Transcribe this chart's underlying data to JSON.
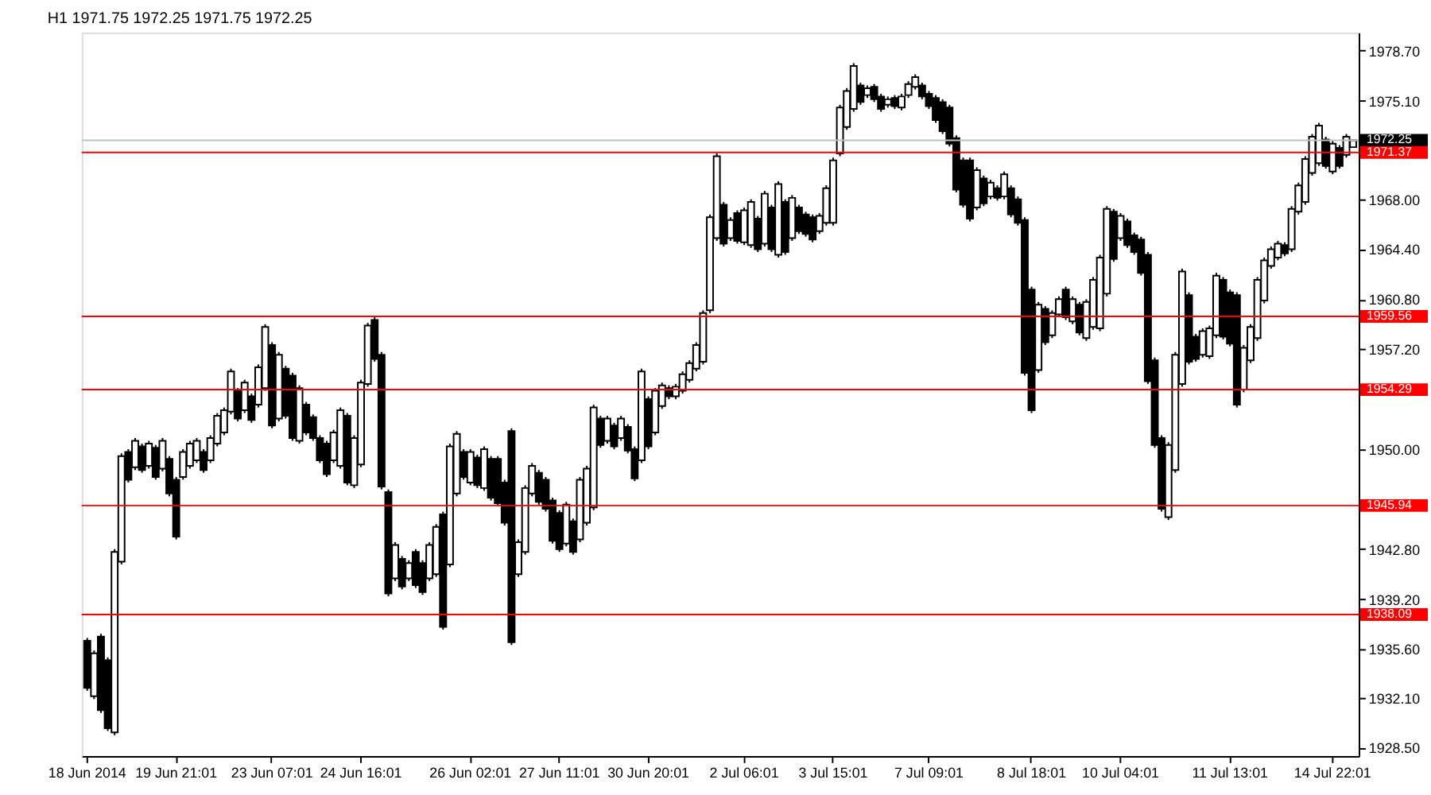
{
  "chart_data": {
    "type": "candlestick",
    "title": "H1  1971.75 1972.25 1971.75 1972.25",
    "color": "#000000",
    "categories": [
      "18 Jun 2014",
      null,
      null,
      null,
      null,
      null,
      null,
      null,
      null,
      null,
      null,
      null,
      null,
      "19 Jun 21:01",
      null,
      null,
      null,
      null,
      null,
      null,
      null,
      null,
      null,
      null,
      null,
      null,
      null,
      "23 Jun 07:01",
      null,
      null,
      null,
      null,
      null,
      null,
      null,
      null,
      null,
      null,
      null,
      null,
      "24 Jun 16:01",
      null,
      null,
      null,
      null,
      null,
      null,
      null,
      null,
      null,
      null,
      null,
      null,
      null,
      null,
      null,
      "26 Jun 02:01",
      null,
      null,
      null,
      null,
      null,
      null,
      null,
      null,
      null,
      null,
      null,
      null,
      "27 Jun 11:01",
      null,
      null,
      null,
      null,
      null,
      null,
      null,
      null,
      null,
      null,
      null,
      null,
      "30 Jun 20:01",
      null,
      null,
      null,
      null,
      null,
      null,
      null,
      null,
      null,
      null,
      null,
      null,
      null,
      "2 Jul 06:01",
      null,
      null,
      null,
      null,
      null,
      null,
      null,
      null,
      null,
      null,
      null,
      null,
      "3 Jul 15:01",
      null,
      null,
      null,
      null,
      null,
      null,
      null,
      null,
      null,
      null,
      null,
      null,
      null,
      "7 Jul 09:01",
      null,
      null,
      null,
      null,
      null,
      null,
      null,
      null,
      null,
      null,
      null,
      null,
      null,
      null,
      "8 Jul 18:01",
      null,
      null,
      null,
      null,
      null,
      null,
      null,
      null,
      null,
      null,
      null,
      null,
      "10 Jul 04:01",
      null,
      null,
      null,
      null,
      null,
      null,
      null,
      null,
      null,
      null,
      null,
      null,
      null,
      null,
      null,
      "11 Jul 13:01",
      null,
      null,
      null,
      null,
      null,
      null,
      null,
      null,
      null,
      null,
      null,
      null,
      null,
      null,
      "14 Jul 22:01",
      null,
      null,
      null
    ],
    "ohlc": [
      [
        1936.2,
        1936.4,
        1932.6,
        1932.8
      ],
      [
        1932.2,
        1935.5,
        1932.0,
        1935.3
      ],
      [
        1936.5,
        1936.7,
        1931.0,
        1931.2
      ],
      [
        1934.8,
        1935.0,
        1929.7,
        1929.9
      ],
      [
        1929.6,
        1942.8,
        1929.4,
        1942.6
      ],
      [
        1941.9,
        1949.7,
        1941.7,
        1949.5
      ],
      [
        1949.8,
        1950.0,
        1947.6,
        1947.8
      ],
      [
        1948.7,
        1950.8,
        1948.5,
        1950.6
      ],
      [
        1950.2,
        1950.4,
        1948.3,
        1948.5
      ],
      [
        1948.8,
        1950.6,
        1948.6,
        1950.4
      ],
      [
        1950.1,
        1950.3,
        1947.8,
        1948.0
      ],
      [
        1948.6,
        1950.8,
        1948.4,
        1950.6
      ],
      [
        1949.3,
        1949.5,
        1946.6,
        1946.8
      ],
      [
        1947.8,
        1948.0,
        1943.5,
        1943.7
      ],
      [
        1948.0,
        1950.0,
        1947.8,
        1949.8
      ],
      [
        1948.8,
        1950.6,
        1948.6,
        1950.4
      ],
      [
        1949.2,
        1950.8,
        1949.0,
        1950.6
      ],
      [
        1949.8,
        1950.0,
        1948.3,
        1948.5
      ],
      [
        1949.2,
        1951.0,
        1949.0,
        1950.8
      ],
      [
        1950.4,
        1952.6,
        1950.2,
        1952.4
      ],
      [
        1951.2,
        1953.0,
        1951.0,
        1952.8
      ],
      [
        1952.7,
        1955.8,
        1952.5,
        1955.6
      ],
      [
        1954.2,
        1954.4,
        1952.0,
        1952.2
      ],
      [
        1952.8,
        1955.0,
        1952.6,
        1954.8
      ],
      [
        1953.8,
        1954.0,
        1951.9,
        1952.1
      ],
      [
        1953.2,
        1956.1,
        1953.0,
        1955.9
      ],
      [
        1954.4,
        1959.0,
        1954.2,
        1958.8
      ],
      [
        1957.5,
        1957.7,
        1951.5,
        1951.7
      ],
      [
        1952.2,
        1957.0,
        1952.0,
        1956.8
      ],
      [
        1955.8,
        1956.0,
        1952.2,
        1952.4
      ],
      [
        1955.3,
        1955.5,
        1950.6,
        1950.8
      ],
      [
        1950.6,
        1954.6,
        1950.4,
        1954.4
      ],
      [
        1953.2,
        1953.4,
        1951.0,
        1951.2
      ],
      [
        1952.3,
        1952.5,
        1950.6,
        1950.8
      ],
      [
        1950.8,
        1951.0,
        1949.0,
        1949.2
      ],
      [
        1950.4,
        1950.6,
        1948.0,
        1948.2
      ],
      [
        1949.2,
        1951.4,
        1949.0,
        1951.2
      ],
      [
        1948.8,
        1953.0,
        1948.6,
        1952.8
      ],
      [
        1952.4,
        1952.6,
        1947.4,
        1947.6
      ],
      [
        1947.4,
        1951.0,
        1947.2,
        1950.8
      ],
      [
        1948.9,
        1955.0,
        1948.7,
        1954.8
      ],
      [
        1954.7,
        1959.1,
        1954.5,
        1958.9
      ],
      [
        1959.3,
        1959.5,
        1956.3,
        1956.5
      ],
      [
        1956.8,
        1957.0,
        1947.1,
        1947.3
      ],
      [
        1946.9,
        1947.1,
        1939.4,
        1939.6
      ],
      [
        1940.7,
        1943.3,
        1940.5,
        1943.1
      ],
      [
        1942.1,
        1942.3,
        1939.9,
        1940.1
      ],
      [
        1940.7,
        1942.0,
        1940.5,
        1941.8
      ],
      [
        1942.6,
        1942.8,
        1940.0,
        1940.2
      ],
      [
        1941.8,
        1942.0,
        1939.5,
        1939.7
      ],
      [
        1940.7,
        1943.3,
        1940.5,
        1943.1
      ],
      [
        1941.0,
        1944.6,
        1940.8,
        1944.4
      ],
      [
        1945.3,
        1945.5,
        1937.0,
        1937.2
      ],
      [
        1941.7,
        1950.4,
        1941.5,
        1950.2
      ],
      [
        1946.8,
        1951.3,
        1946.6,
        1951.1
      ],
      [
        1949.8,
        1950.0,
        1947.8,
        1948.0
      ],
      [
        1947.6,
        1950.0,
        1947.4,
        1949.8
      ],
      [
        1949.4,
        1949.6,
        1947.2,
        1947.4
      ],
      [
        1947.2,
        1950.2,
        1947.0,
        1950.0
      ],
      [
        1949.3,
        1949.5,
        1946.3,
        1946.5
      ],
      [
        1949.3,
        1949.5,
        1945.9,
        1946.1
      ],
      [
        1947.6,
        1947.8,
        1944.5,
        1944.7
      ],
      [
        1951.3,
        1951.5,
        1935.9,
        1936.1
      ],
      [
        1941.0,
        1943.5,
        1940.8,
        1943.3
      ],
      [
        1942.6,
        1947.4,
        1942.4,
        1947.2
      ],
      [
        1946.8,
        1949.0,
        1946.6,
        1948.8
      ],
      [
        1948.3,
        1948.5,
        1946.0,
        1946.2
      ],
      [
        1947.8,
        1948.0,
        1945.5,
        1945.7
      ],
      [
        1946.3,
        1946.5,
        1943.2,
        1943.4
      ],
      [
        1945.4,
        1945.6,
        1942.6,
        1942.8
      ],
      [
        1943.2,
        1946.2,
        1943.0,
        1946.0
      ],
      [
        1944.8,
        1945.0,
        1942.4,
        1942.6
      ],
      [
        1943.5,
        1948.0,
        1943.3,
        1947.8
      ],
      [
        1944.7,
        1948.8,
        1944.5,
        1948.6
      ],
      [
        1945.8,
        1953.2,
        1945.6,
        1953.0
      ],
      [
        1952.2,
        1952.4,
        1950.1,
        1950.3
      ],
      [
        1950.6,
        1952.4,
        1950.4,
        1952.2
      ],
      [
        1951.7,
        1951.9,
        1950.0,
        1950.2
      ],
      [
        1950.8,
        1952.4,
        1950.6,
        1952.2
      ],
      [
        1951.6,
        1951.8,
        1949.7,
        1949.9
      ],
      [
        1950.0,
        1950.2,
        1947.7,
        1947.9
      ],
      [
        1949.2,
        1955.8,
        1949.0,
        1955.6
      ],
      [
        1953.6,
        1953.8,
        1950.0,
        1950.2
      ],
      [
        1951.2,
        1954.4,
        1951.0,
        1954.2
      ],
      [
        1953.1,
        1954.8,
        1952.9,
        1954.6
      ],
      [
        1954.4,
        1954.6,
        1953.6,
        1953.8
      ],
      [
        1953.8,
        1954.7,
        1953.6,
        1954.5
      ],
      [
        1954.2,
        1955.6,
        1954.0,
        1955.4
      ],
      [
        1955.0,
        1956.4,
        1954.8,
        1956.2
      ],
      [
        1955.8,
        1957.7,
        1955.6,
        1957.5
      ],
      [
        1956.3,
        1960.0,
        1956.1,
        1959.8
      ],
      [
        1960.0,
        1966.9,
        1959.8,
        1966.7
      ],
      [
        1965.2,
        1971.3,
        1965.0,
        1971.1
      ],
      [
        1967.6,
        1967.8,
        1964.6,
        1964.8
      ],
      [
        1965.2,
        1966.7,
        1965.0,
        1966.5
      ],
      [
        1967.0,
        1967.2,
        1964.8,
        1965.0
      ],
      [
        1964.9,
        1967.4,
        1964.7,
        1967.2
      ],
      [
        1964.7,
        1968.0,
        1964.5,
        1967.8
      ],
      [
        1966.6,
        1966.8,
        1964.2,
        1964.4
      ],
      [
        1964.8,
        1968.6,
        1964.6,
        1968.4
      ],
      [
        1967.4,
        1967.6,
        1964.2,
        1964.4
      ],
      [
        1964.0,
        1969.3,
        1963.8,
        1969.1
      ],
      [
        1967.8,
        1968.0,
        1964.0,
        1964.2
      ],
      [
        1965.2,
        1968.3,
        1965.0,
        1968.1
      ],
      [
        1967.4,
        1967.6,
        1965.5,
        1965.7
      ],
      [
        1966.9,
        1967.1,
        1965.3,
        1965.5
      ],
      [
        1966.7,
        1966.9,
        1964.9,
        1965.1
      ],
      [
        1965.7,
        1967.0,
        1965.5,
        1966.8
      ],
      [
        1966.3,
        1969.0,
        1966.1,
        1968.8
      ],
      [
        1966.3,
        1971.0,
        1966.1,
        1970.8
      ],
      [
        1971.3,
        1974.8,
        1971.1,
        1974.6
      ],
      [
        1973.2,
        1976.0,
        1973.0,
        1975.8
      ],
      [
        1974.5,
        1977.8,
        1974.3,
        1977.6
      ],
      [
        1976.2,
        1976.4,
        1974.8,
        1975.0
      ],
      [
        1975.5,
        1976.2,
        1975.3,
        1976.0
      ],
      [
        1976.1,
        1976.3,
        1975.0,
        1975.2
      ],
      [
        1975.4,
        1975.6,
        1974.3,
        1974.5
      ],
      [
        1974.8,
        1975.4,
        1974.6,
        1975.2
      ],
      [
        1975.3,
        1975.5,
        1974.5,
        1974.7
      ],
      [
        1974.6,
        1975.6,
        1974.4,
        1975.4
      ],
      [
        1975.5,
        1976.5,
        1975.3,
        1976.3
      ],
      [
        1976.1,
        1977.0,
        1975.9,
        1976.8
      ],
      [
        1976.2,
        1976.4,
        1975.2,
        1975.4
      ],
      [
        1975.6,
        1975.8,
        1974.5,
        1974.7
      ],
      [
        1975.3,
        1975.5,
        1973.5,
        1973.7
      ],
      [
        1975.0,
        1975.2,
        1972.7,
        1972.9
      ],
      [
        1974.6,
        1974.8,
        1971.8,
        1972.0
      ],
      [
        1972.4,
        1972.6,
        1968.5,
        1968.7
      ],
      [
        1970.8,
        1971.0,
        1967.4,
        1967.6
      ],
      [
        1970.8,
        1971.0,
        1966.4,
        1966.6
      ],
      [
        1967.4,
        1970.3,
        1967.2,
        1970.1
      ],
      [
        1969.5,
        1969.7,
        1967.5,
        1967.7
      ],
      [
        1968.2,
        1969.4,
        1968.0,
        1969.2
      ],
      [
        1968.8,
        1969.0,
        1967.9,
        1968.1
      ],
      [
        1968.2,
        1970.0,
        1968.0,
        1969.8
      ],
      [
        1968.8,
        1969.0,
        1966.7,
        1966.9
      ],
      [
        1968.0,
        1968.2,
        1966.1,
        1966.3
      ],
      [
        1966.5,
        1966.7,
        1955.3,
        1955.5
      ],
      [
        1961.5,
        1961.7,
        1952.6,
        1952.8
      ],
      [
        1955.7,
        1960.6,
        1955.5,
        1960.4
      ],
      [
        1960.1,
        1960.3,
        1957.5,
        1957.7
      ],
      [
        1958.2,
        1960.0,
        1958.0,
        1959.8
      ],
      [
        1959.7,
        1961.0,
        1959.5,
        1960.8
      ],
      [
        1961.5,
        1961.7,
        1959.3,
        1959.5
      ],
      [
        1959.2,
        1961.0,
        1959.0,
        1960.8
      ],
      [
        1960.4,
        1960.6,
        1958.2,
        1958.4
      ],
      [
        1958.0,
        1960.8,
        1957.8,
        1960.6
      ],
      [
        1958.8,
        1962.4,
        1958.6,
        1962.2
      ],
      [
        1958.7,
        1964.0,
        1958.5,
        1963.8
      ],
      [
        1961.2,
        1967.5,
        1961.0,
        1967.3
      ],
      [
        1967.1,
        1967.3,
        1963.5,
        1963.7
      ],
      [
        1965.2,
        1967.0,
        1965.0,
        1966.8
      ],
      [
        1966.4,
        1966.6,
        1964.5,
        1964.7
      ],
      [
        1965.4,
        1965.6,
        1964.0,
        1964.2
      ],
      [
        1965.1,
        1965.3,
        1962.5,
        1962.7
      ],
      [
        1964.0,
        1964.2,
        1954.7,
        1954.9
      ],
      [
        1956.4,
        1956.6,
        1950.1,
        1950.3
      ],
      [
        1950.8,
        1951.0,
        1945.5,
        1945.7
      ],
      [
        1945.1,
        1950.5,
        1944.9,
        1950.3
      ],
      [
        1948.5,
        1957.0,
        1948.3,
        1956.8
      ],
      [
        1954.7,
        1963.0,
        1954.5,
        1962.8
      ],
      [
        1961.1,
        1961.3,
        1956.1,
        1956.3
      ],
      [
        1958.1,
        1958.3,
        1956.3,
        1956.5
      ],
      [
        1956.8,
        1958.7,
        1956.6,
        1958.5
      ],
      [
        1956.7,
        1958.9,
        1956.5,
        1958.7
      ],
      [
        1958.2,
        1962.7,
        1958.0,
        1962.5
      ],
      [
        1962.2,
        1962.4,
        1957.9,
        1958.1
      ],
      [
        1961.3,
        1961.5,
        1957.4,
        1957.6
      ],
      [
        1961.1,
        1961.3,
        1953.0,
        1953.2
      ],
      [
        1954.3,
        1957.5,
        1954.1,
        1957.3
      ],
      [
        1956.4,
        1959.0,
        1956.2,
        1958.8
      ],
      [
        1958.0,
        1962.4,
        1957.8,
        1962.2
      ],
      [
        1960.7,
        1963.8,
        1960.5,
        1963.6
      ],
      [
        1963.2,
        1964.6,
        1963.0,
        1964.4
      ],
      [
        1963.8,
        1965.0,
        1963.6,
        1964.8
      ],
      [
        1964.7,
        1964.9,
        1963.9,
        1964.1
      ],
      [
        1964.4,
        1967.5,
        1964.2,
        1967.3
      ],
      [
        1967.1,
        1969.2,
        1966.9,
        1969.0
      ],
      [
        1967.8,
        1971.1,
        1967.6,
        1970.9
      ],
      [
        1969.9,
        1972.7,
        1969.7,
        1972.5
      ],
      [
        1970.6,
        1973.5,
        1970.4,
        1973.3
      ],
      [
        1972.3,
        1972.5,
        1970.2,
        1970.4
      ],
      [
        1970.0,
        1972.2,
        1969.8,
        1972.0
      ],
      [
        1971.7,
        1971.9,
        1970.2,
        1970.4
      ],
      [
        1971.2,
        1972.7,
        1971.0,
        1972.5
      ],
      [
        1971.75,
        1972.25,
        1971.75,
        1972.25
      ]
    ],
    "ylim": [
      1927.9,
      1980.0
    ],
    "yticks": [
      {
        "value": 1928.5,
        "label": "1928.50"
      },
      {
        "value": 1932.1,
        "label": "1932.10"
      },
      {
        "value": 1935.6,
        "label": "1935.60"
      },
      {
        "value": 1939.2,
        "label": "1939.20"
      },
      {
        "value": 1942.8,
        "label": "1942.80"
      },
      {
        "value": 1950.0,
        "label": "1950.00"
      },
      {
        "value": 1957.2,
        "label": "1957.20"
      },
      {
        "value": 1960.8,
        "label": "1960.80"
      },
      {
        "value": 1964.4,
        "label": "1964.40"
      },
      {
        "value": 1968.0,
        "label": "1968.00"
      },
      {
        "value": 1971.6,
        "label": null
      },
      {
        "value": 1975.1,
        "label": "1975.10"
      },
      {
        "value": 1978.7,
        "label": "1978.70"
      }
    ],
    "ref_lines": [
      {
        "axis": "y",
        "value": 1972.25,
        "label": "1972.25",
        "color": "#c0c0c0"
      },
      {
        "axis": "y",
        "value": 1971.37,
        "label": "1971.37",
        "color": "#ff0000"
      },
      {
        "axis": "y",
        "value": 1959.56,
        "label": "1959.56",
        "color": "#ff0000"
      },
      {
        "axis": "y",
        "value": 1954.29,
        "label": "1954.29",
        "color": "#ff0000"
      },
      {
        "axis": "y",
        "value": 1945.94,
        "label": "1945.94",
        "color": "#ff0000"
      },
      {
        "axis": "y",
        "value": 1938.09,
        "label": "1938.09",
        "color": "#ff0000"
      }
    ],
    "grid": false
  }
}
